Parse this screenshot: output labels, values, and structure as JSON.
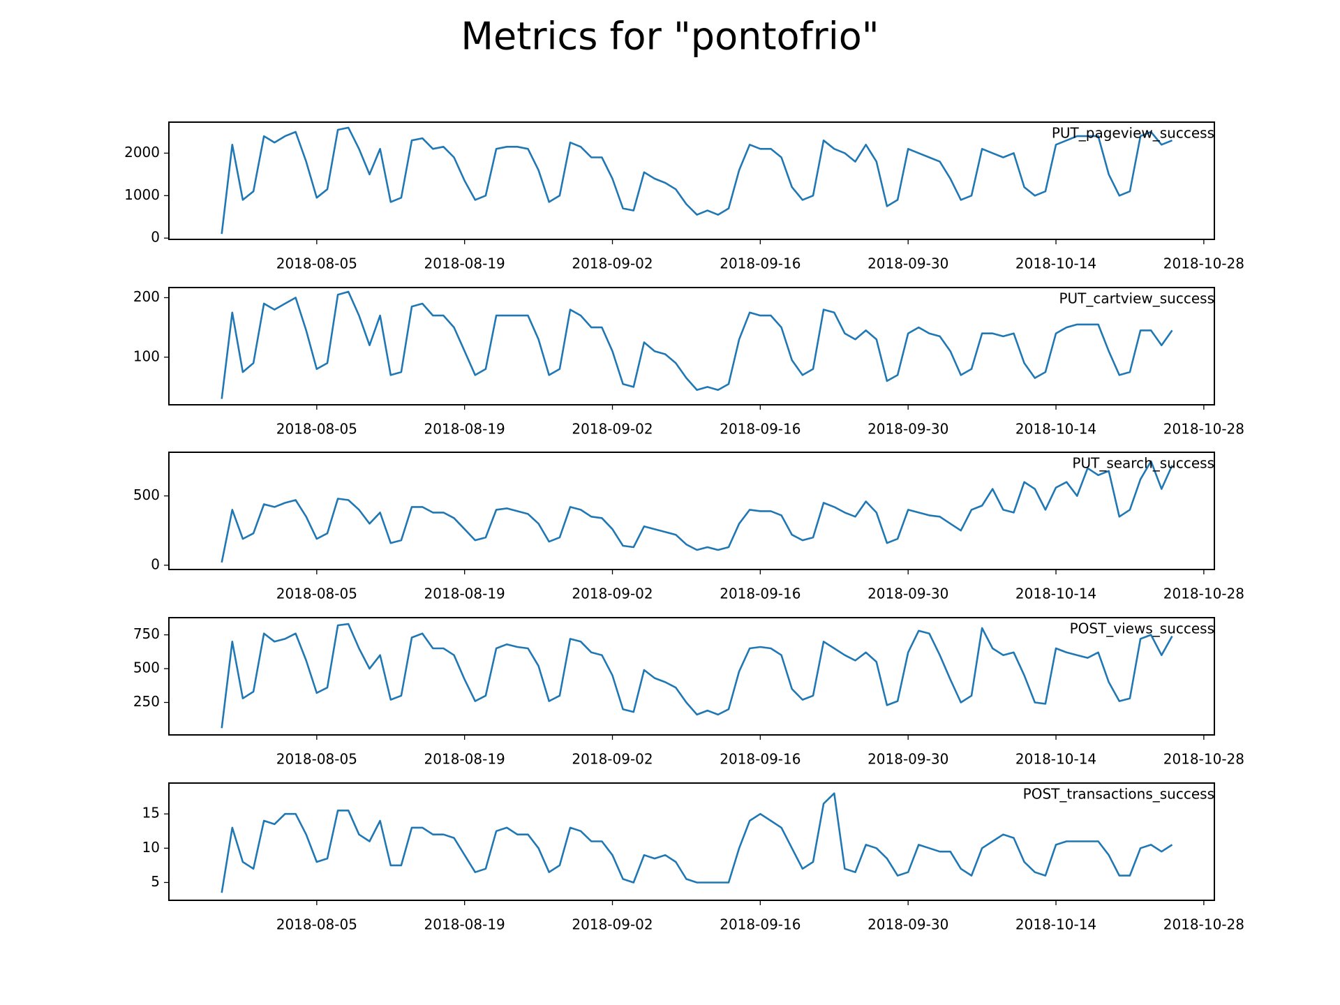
{
  "chart_data": {
    "type": "line",
    "title": "Metrics for \"pontofrio\"",
    "x": [
      "2018-07-27",
      "2018-07-28",
      "2018-07-29",
      "2018-07-30",
      "2018-07-31",
      "2018-08-01",
      "2018-08-02",
      "2018-08-03",
      "2018-08-04",
      "2018-08-05",
      "2018-08-06",
      "2018-08-07",
      "2018-08-08",
      "2018-08-09",
      "2018-08-10",
      "2018-08-11",
      "2018-08-12",
      "2018-08-13",
      "2018-08-14",
      "2018-08-15",
      "2018-08-16",
      "2018-08-17",
      "2018-08-18",
      "2018-08-19",
      "2018-08-20",
      "2018-08-21",
      "2018-08-22",
      "2018-08-23",
      "2018-08-24",
      "2018-08-25",
      "2018-08-26",
      "2018-08-27",
      "2018-08-28",
      "2018-08-29",
      "2018-08-30",
      "2018-08-31",
      "2018-09-01",
      "2018-09-02",
      "2018-09-03",
      "2018-09-04",
      "2018-09-05",
      "2018-09-06",
      "2018-09-07",
      "2018-09-08",
      "2018-09-09",
      "2018-09-10",
      "2018-09-11",
      "2018-09-12",
      "2018-09-13",
      "2018-09-14",
      "2018-09-15",
      "2018-09-16",
      "2018-09-17",
      "2018-09-18",
      "2018-09-19",
      "2018-09-20",
      "2018-09-21",
      "2018-09-22",
      "2018-09-23",
      "2018-09-24",
      "2018-09-25",
      "2018-09-26",
      "2018-09-27",
      "2018-09-28",
      "2018-09-29",
      "2018-09-30",
      "2018-10-01",
      "2018-10-02",
      "2018-10-03",
      "2018-10-04",
      "2018-10-05",
      "2018-10-06",
      "2018-10-07",
      "2018-10-08",
      "2018-10-09",
      "2018-10-10",
      "2018-10-11",
      "2018-10-12",
      "2018-10-13",
      "2018-10-14",
      "2018-10-15",
      "2018-10-16",
      "2018-10-17",
      "2018-10-18",
      "2018-10-19",
      "2018-10-20",
      "2018-10-21",
      "2018-10-22",
      "2018-10-23",
      "2018-10-24",
      "2018-10-25"
    ],
    "xlim": [
      "2018-07-22",
      "2018-10-29"
    ],
    "xticks": [
      "2018-08-05",
      "2018-08-19",
      "2018-09-02",
      "2018-09-16",
      "2018-09-30",
      "2018-10-14",
      "2018-10-28"
    ],
    "series": [
      {
        "name": "PUT_pageview_success",
        "color": "#1f77b4",
        "ylim": [
          -30,
          2730
        ],
        "yticks": [
          0,
          1000,
          2000
        ],
        "values": [
          100,
          2200,
          900,
          1100,
          2400,
          2250,
          2400,
          2500,
          1800,
          950,
          1150,
          2550,
          2600,
          2100,
          1500,
          2100,
          850,
          950,
          2300,
          2350,
          2100,
          2150,
          1900,
          1350,
          900,
          1000,
          2100,
          2150,
          2150,
          2100,
          1600,
          850,
          1000,
          2250,
          2150,
          1900,
          1900,
          1400,
          700,
          650,
          1550,
          1400,
          1300,
          1150,
          800,
          550,
          650,
          550,
          700,
          1600,
          2200,
          2100,
          2100,
          1900,
          1200,
          900,
          1000,
          2300,
          2100,
          2000,
          1800,
          2200,
          1800,
          750,
          900,
          2100,
          2000,
          1900,
          1800,
          1400,
          900,
          1000,
          2100,
          2000,
          1900,
          2000,
          1200,
          1000,
          1100,
          2200,
          2300,
          2400,
          2400,
          2400,
          1500,
          1000,
          1100,
          2400,
          2500,
          2200,
          2300
        ]
      },
      {
        "name": "PUT_cartview_success",
        "color": "#1f77b4",
        "ylim": [
          20,
          217
        ],
        "yticks": [
          100,
          200
        ],
        "values": [
          30,
          175,
          75,
          90,
          190,
          180,
          190,
          200,
          145,
          80,
          90,
          205,
          210,
          170,
          120,
          170,
          70,
          75,
          185,
          190,
          170,
          170,
          150,
          110,
          70,
          80,
          170,
          170,
          170,
          170,
          130,
          70,
          80,
          180,
          170,
          150,
          150,
          110,
          55,
          50,
          125,
          110,
          105,
          90,
          65,
          45,
          50,
          45,
          55,
          130,
          175,
          170,
          170,
          150,
          95,
          70,
          80,
          180,
          175,
          140,
          130,
          145,
          130,
          60,
          70,
          140,
          150,
          140,
          135,
          110,
          70,
          80,
          140,
          140,
          135,
          140,
          90,
          65,
          75,
          140,
          150,
          155,
          155,
          155,
          110,
          70,
          75,
          145,
          145,
          120,
          145
        ]
      },
      {
        "name": "PUT_search_success",
        "color": "#1f77b4",
        "ylim": [
          -31,
          815
        ],
        "yticks": [
          0,
          500
        ],
        "values": [
          20,
          400,
          190,
          230,
          440,
          420,
          450,
          470,
          350,
          190,
          230,
          480,
          470,
          400,
          300,
          380,
          160,
          180,
          420,
          420,
          380,
          380,
          340,
          260,
          180,
          200,
          400,
          410,
          390,
          370,
          300,
          170,
          200,
          420,
          400,
          350,
          340,
          260,
          140,
          130,
          280,
          260,
          240,
          220,
          150,
          110,
          130,
          110,
          130,
          300,
          400,
          390,
          390,
          360,
          220,
          180,
          200,
          450,
          420,
          380,
          350,
          460,
          380,
          160,
          190,
          400,
          380,
          360,
          350,
          300,
          250,
          400,
          430,
          550,
          400,
          380,
          600,
          550,
          400,
          560,
          600,
          500,
          700,
          650,
          680,
          350,
          400,
          620,
          750,
          550,
          720
        ]
      },
      {
        "name": "POST_views_success",
        "color": "#1f77b4",
        "ylim": [
          10,
          877
        ],
        "yticks": [
          250,
          500,
          750
        ],
        "values": [
          60,
          700,
          280,
          330,
          760,
          700,
          720,
          760,
          560,
          320,
          360,
          820,
          830,
          650,
          500,
          600,
          270,
          300,
          730,
          760,
          650,
          650,
          600,
          420,
          260,
          300,
          650,
          680,
          660,
          650,
          520,
          260,
          300,
          720,
          700,
          620,
          600,
          450,
          200,
          180,
          490,
          430,
          400,
          360,
          250,
          160,
          190,
          160,
          200,
          480,
          650,
          660,
          650,
          600,
          350,
          270,
          300,
          700,
          650,
          600,
          560,
          620,
          550,
          230,
          260,
          620,
          780,
          760,
          600,
          420,
          250,
          300,
          800,
          650,
          600,
          620,
          450,
          250,
          240,
          650,
          620,
          600,
          580,
          620,
          400,
          260,
          280,
          720,
          750,
          600,
          740
        ]
      },
      {
        "name": "POST_transactions_success",
        "color": "#1f77b4",
        "ylim": [
          2.4,
          19.5
        ],
        "yticks": [
          5,
          10,
          15
        ],
        "values": [
          3.5,
          13,
          8,
          7,
          14,
          13.5,
          15,
          15,
          12,
          8,
          8.5,
          15.5,
          15.5,
          12,
          11,
          14,
          7.5,
          7.5,
          13,
          13,
          12,
          12,
          11.5,
          9,
          6.5,
          7,
          12.5,
          13,
          12,
          12,
          10,
          6.5,
          7.5,
          13,
          12.5,
          11,
          11,
          9,
          5.5,
          5,
          9,
          8.5,
          9,
          8,
          5.5,
          5,
          5,
          5,
          5,
          10,
          14,
          15,
          14,
          13,
          10,
          7,
          8,
          16.5,
          18,
          7,
          6.5,
          10.5,
          10,
          8.5,
          6,
          6.5,
          10.5,
          10,
          9.5,
          9.5,
          7,
          6,
          10,
          11,
          12,
          11.5,
          8,
          6.5,
          6,
          10.5,
          11,
          11,
          11,
          11,
          9,
          6,
          6,
          10,
          10.5,
          9.5,
          10.5
        ]
      }
    ]
  }
}
